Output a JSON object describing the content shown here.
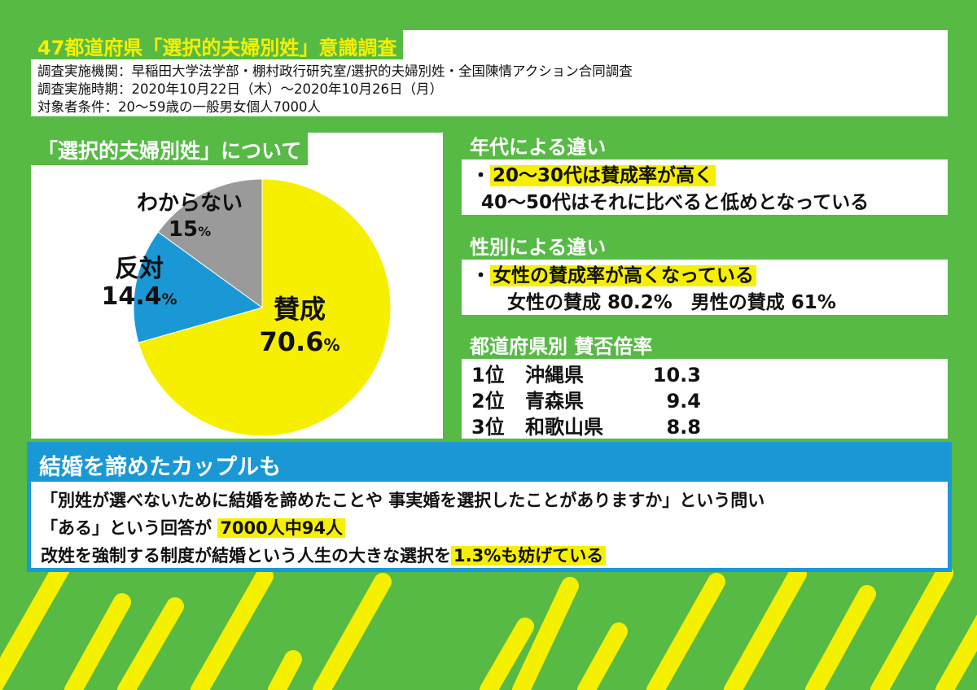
{
  "header": {
    "title": "47都道府県「選択的夫婦別姓」意識調査",
    "lines": [
      "調査実施機関：早稲田大学法学部・棚村政行研究室/選択的夫婦別姓・全国陳情アクション合同調査",
      "調査実施時期：2020年10月22日（木）～2020年10月26日（月）",
      "対象者条件：20～59歳の一般男女個人7000人"
    ]
  },
  "pie_panel": {
    "title": "「選択的夫婦別姓」について"
  },
  "chart_data": {
    "type": "pie",
    "title": "「選択的夫婦別姓」について",
    "slices": [
      {
        "label": "賛成",
        "value": 70.6,
        "display": "70.6",
        "color": "#f7ef00"
      },
      {
        "label": "反対",
        "value": 14.4,
        "display": "14.4",
        "color": "#1a98d6"
      },
      {
        "label": "わからない",
        "value": 15,
        "display": "15",
        "color": "#9a9a9a"
      }
    ],
    "unit": "%"
  },
  "age": {
    "title": "年代による違い",
    "bullet": "・",
    "line1": "20～30代は賛成率が高く",
    "line2": "40～50代はそれに比べると低めとなっている"
  },
  "gender": {
    "title": "性別による違い",
    "bullet": "・",
    "line1": "女性の賛成率が高くなっている",
    "line2": "女性の賛成 80.2%　男性の賛成 61%"
  },
  "prefecture": {
    "title": "都道府県別 賛否倍率",
    "rows": [
      {
        "rank": "1位",
        "name": "沖縄県",
        "value": "10.3"
      },
      {
        "rank": "2位",
        "name": "青森県",
        "value": "9.4"
      },
      {
        "rank": "3位",
        "name": "和歌山県",
        "value": "8.8"
      }
    ]
  },
  "marriage": {
    "title": "結婚を諦めたカップルも",
    "line1": "「別姓が選べないために結婚を諦めたことや 事実婚を選択したことがありますか」という問い",
    "line2_pre": "「ある」という回答が ",
    "line2_hl": "7000人中94人",
    "line3_pre": "改姓を強制する制度が結婚という人生の大きな選択を",
    "line3_hl": "1.3%も妨げている"
  },
  "colors": {
    "background": "#56ba45",
    "stripe": "#f4f000",
    "blue": "#1a98d6",
    "highlight": "#f7ef00"
  }
}
